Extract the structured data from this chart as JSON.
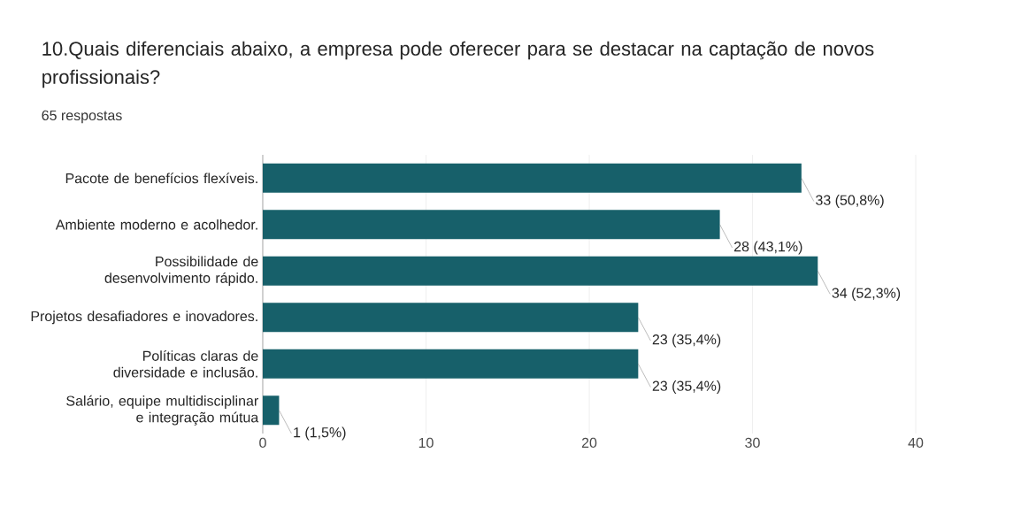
{
  "chart_data": {
    "type": "bar",
    "orientation": "horizontal",
    "title": "10.Quais diferenciais abaixo, a empresa pode oferecer para se destacar na captação de novos profissionais?",
    "subtitle": "65 respostas",
    "categories": [
      "Pacote de benefícios flexíveis.",
      "Ambiente moderno e acolhedor.",
      "Possibilidade de desenvolvimento rápido.",
      "Projetos desafiadores e inovadores.",
      "Políticas claras de diversidade e inclusão.",
      "Salário, equipe multidisciplinar e integração mútua"
    ],
    "values": [
      33,
      28,
      34,
      23,
      23,
      1
    ],
    "value_labels": [
      "33 (50,8%)",
      "28 (43,1%)",
      "34 (52,3%)",
      "23 (35,4%)",
      "23 (35,4%)",
      "1 (1,5%)"
    ],
    "color": "#17606a",
    "xlim": [
      0,
      40
    ],
    "xticks": [
      0,
      10,
      20,
      30,
      40
    ],
    "grid": "x"
  }
}
